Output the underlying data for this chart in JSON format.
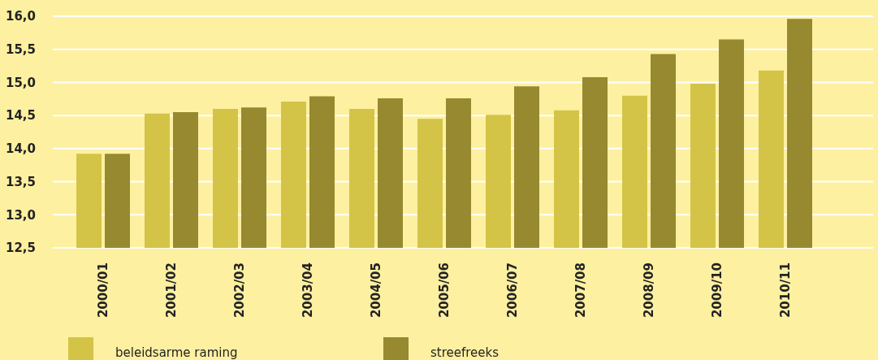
{
  "chart_data": {
    "type": "bar",
    "categories": [
      "2000/01",
      "2001/02",
      "2002/03",
      "2003/04",
      "2004/05",
      "2005/06",
      "2006/07",
      "2007/08",
      "2008/09",
      "2009/10",
      "2010/11"
    ],
    "series": [
      {
        "name": "beleidsarme raming",
        "color": "#d3c447",
        "values": [
          13.92,
          14.53,
          14.6,
          14.71,
          14.6,
          14.45,
          14.51,
          14.58,
          14.8,
          14.98,
          15.18
        ]
      },
      {
        "name": "streefreeks",
        "color": "#968930",
        "values": [
          13.92,
          14.55,
          14.62,
          14.79,
          14.76,
          14.76,
          14.94,
          15.08,
          15.43,
          15.65,
          15.96
        ]
      }
    ],
    "ylim": [
      12.5,
      16.0
    ],
    "yticks": [
      {
        "value": 12.5,
        "label": "12,5"
      },
      {
        "value": 13.0,
        "label": "13,0"
      },
      {
        "value": 13.5,
        "label": "13,5"
      },
      {
        "value": 14.0,
        "label": "14,0"
      },
      {
        "value": 14.5,
        "label": "14,5"
      },
      {
        "value": 15.0,
        "label": "15,0"
      },
      {
        "value": 15.5,
        "label": "15,5"
      },
      {
        "value": 16.0,
        "label": "16,0"
      }
    ],
    "grid": "y",
    "legend": "bottom left"
  }
}
